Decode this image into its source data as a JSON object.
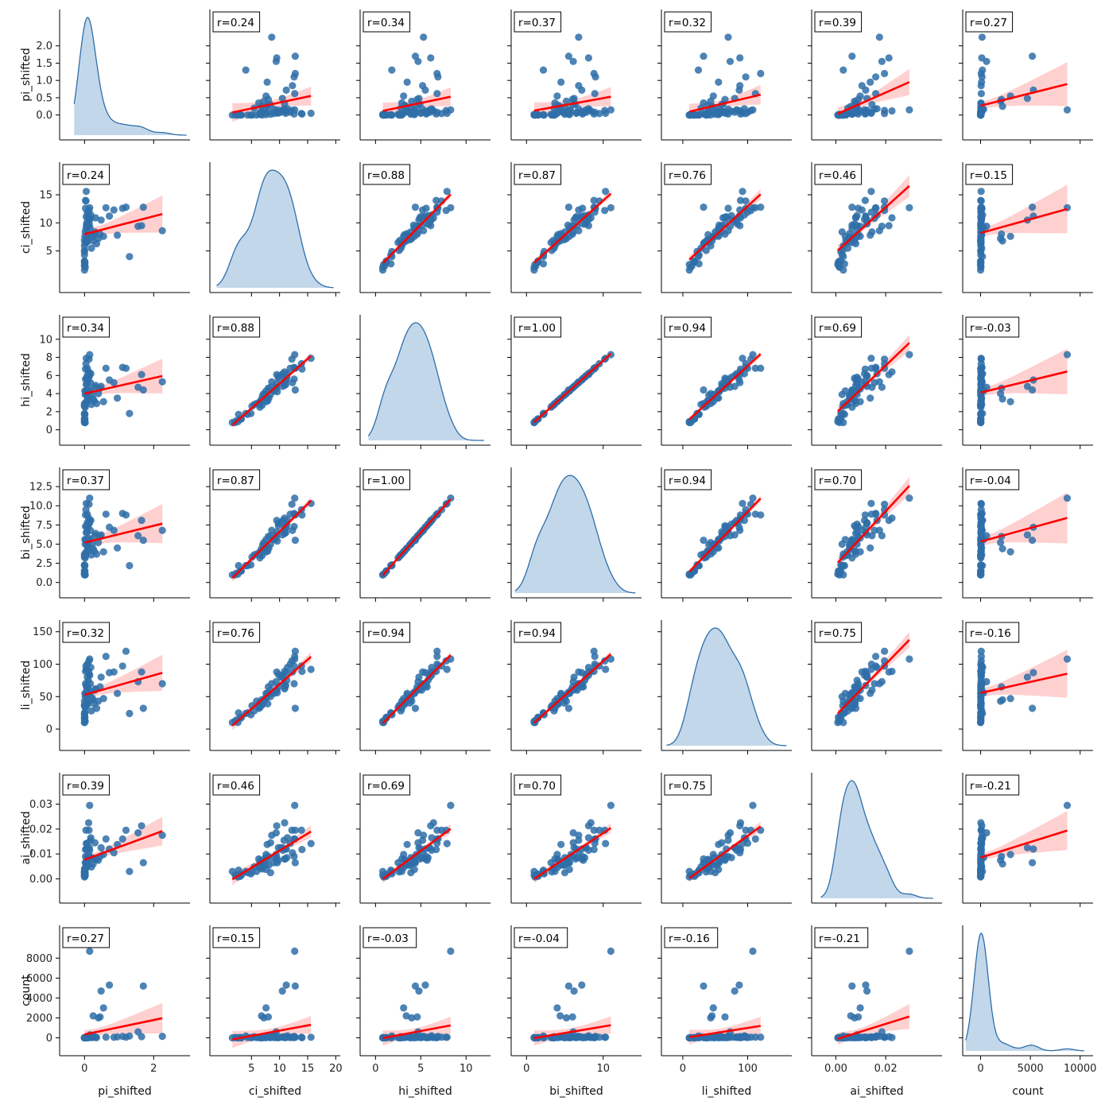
{
  "chart_data": {
    "type": "pairplot",
    "variables": [
      "pi_shifted",
      "ci_shifted",
      "hi_shifted",
      "bi_shifted",
      "li_shifted",
      "ai_shifted",
      "count"
    ],
    "axes": {
      "pi_shifted": {
        "lim": [
          -0.72,
          3.05
        ],
        "x_ticks": [
          0,
          2
        ],
        "y_ticks": [
          0.0,
          0.5,
          1.0,
          1.5,
          2.0
        ],
        "y_tick_labels": [
          "0.0",
          "0.5",
          "1.0",
          "1.5",
          "2.0"
        ]
      },
      "ci_shifted": {
        "lim": [
          -2.4,
          20.8
        ],
        "x_ticks": [
          5,
          10,
          15,
          20
        ],
        "y_ticks": [
          5,
          10,
          15
        ],
        "y_tick_labels": [
          "5",
          "10",
          "15"
        ]
      },
      "hi_shifted": {
        "lim": [
          -1.7,
          12.7
        ],
        "x_ticks": [
          0,
          5,
          10
        ],
        "y_ticks": [
          0,
          2,
          4,
          6,
          8,
          10
        ],
        "y_tick_labels": [
          "0",
          "2",
          "4",
          "6",
          "8",
          "10"
        ]
      },
      "bi_shifted": {
        "lim": [
          -2.0,
          15.0
        ],
        "x_ticks": [
          0,
          10
        ],
        "y_ticks": [
          0,
          2.5,
          5,
          7.5,
          10,
          12.5
        ],
        "y_tick_labels": [
          "0.0",
          "2.5",
          "5.0",
          "7.5",
          "10.0",
          "12.5"
        ]
      },
      "li_shifted": {
        "lim": [
          -33,
          168
        ],
        "x_ticks": [
          0,
          100
        ],
        "y_ticks": [
          0,
          50,
          100,
          150
        ],
        "y_tick_labels": [
          "0",
          "50",
          "100",
          "150"
        ]
      },
      "ai_shifted": {
        "lim": [
          -0.0097,
          0.0426
        ],
        "x_ticks": [
          0.0,
          0.02
        ],
        "y_ticks": [
          0.0,
          0.01,
          0.02,
          0.03
        ],
        "y_tick_labels": [
          "0.00",
          "0.01",
          "0.02",
          "0.03"
        ]
      },
      "count": {
        "lim": [
          -1800,
          11300
        ],
        "x_ticks": [
          0,
          5000,
          10000
        ],
        "y_ticks": [
          0,
          2000,
          4000,
          6000,
          8000
        ],
        "y_tick_labels": [
          "0",
          "2000",
          "4000",
          "6000",
          "8000"
        ]
      }
    },
    "correlations": [
      [
        "",
        "r=0.24",
        "r=0.34",
        "r=0.37",
        "r=0.32",
        "r=0.39",
        "r=0.27"
      ],
      [
        "r=0.24",
        "",
        "r=0.88",
        "r=0.87",
        "r=0.76",
        "r=0.46",
        "r=0.15"
      ],
      [
        "r=0.34",
        "r=0.88",
        "",
        "r=1.00",
        "r=0.94",
        "r=0.69",
        "r=-0.03"
      ],
      [
        "r=0.37",
        "r=0.87",
        "r=1.00",
        "",
        "r=0.94",
        "r=0.70",
        "r=-0.04"
      ],
      [
        "r=0.32",
        "r=0.76",
        "r=0.94",
        "r=0.94",
        "",
        "r=0.75",
        "r=-0.16"
      ],
      [
        "r=0.39",
        "r=0.46",
        "r=0.69",
        "r=0.70",
        "r=0.75",
        "",
        "r=-0.21"
      ],
      [
        "r=0.27",
        "r=0.15",
        "r=-0.03",
        "r=-0.04",
        "r=-0.16",
        "r=-0.21",
        ""
      ]
    ],
    "points": {
      "pi_shifted": [
        2.25,
        1.7,
        1.65,
        1.55,
        1.3,
        1.2,
        1.1,
        0.95,
        0.85,
        0.72,
        0.62,
        0.55,
        0.48,
        0.45,
        0.4,
        0.35,
        0.32,
        0.3,
        0.28,
        0.25,
        0.22,
        0.2,
        0.18,
        0.17,
        0.16,
        0.15,
        0.15,
        0.14,
        0.13,
        0.12,
        0.12,
        0.11,
        0.1,
        0.1,
        0.09,
        0.09,
        0.08,
        0.08,
        0.07,
        0.07,
        0.06,
        0.06,
        0.05,
        0.05,
        0.05,
        0.04,
        0.04,
        0.03,
        0.03,
        0.03,
        0.02,
        0.02,
        0.02,
        0.01,
        0.01,
        0.01,
        0.0,
        0.0,
        0.0,
        0.0,
        0.0,
        0.0,
        0.0,
        0.0,
        0.0,
        0.0
      ],
      "ci_shifted": [
        8.6,
        12.8,
        9.5,
        9.4,
        4.0,
        12.8,
        12.6,
        7.8,
        12.3,
        11.2,
        12.7,
        7.6,
        10.5,
        8.0,
        7.2,
        6.3,
        10.9,
        8.4,
        7.9,
        6.8,
        7.5,
        5.5,
        11.4,
        10.8,
        9.1,
        12.7,
        10.6,
        9.8,
        12.2,
        10.9,
        9.4,
        11.3,
        8.1,
        11.0,
        7.0,
        6.7,
        11.9,
        10.2,
        9.5,
        7.5,
        9.6,
        9.8,
        6.5,
        15.6,
        11.1,
        9.0,
        13.9,
        6.5,
        12.6,
        14.0,
        6.5,
        2.1,
        8.4,
        7.6,
        3.0,
        2.7,
        4.9,
        5.1,
        5.9,
        3.1,
        6.9,
        3.2,
        2.3,
        4.3,
        2.6,
        1.6
      ],
      "hi_shifted": [
        5.3,
        4.4,
        6.1,
        4.7,
        1.8,
        6.8,
        6.9,
        3.5,
        5.2,
        5.5,
        6.8,
        3.1,
        4.8,
        4.6,
        4.0,
        2.9,
        4.9,
        4.7,
        3.2,
        3.4,
        3.9,
        2.8,
        6.2,
        5.2,
        4.3,
        8.3,
        6.2,
        5.9,
        7.8,
        6.4,
        4.5,
        5.8,
        3.5,
        5.5,
        3.8,
        3.2,
        6.8,
        6.0,
        5.1,
        3.8,
        4.2,
        5.7,
        3.1,
        7.9,
        5.0,
        4.3,
        7.3,
        2.8,
        5.6,
        6.7,
        2.5,
        0.8,
        3.9,
        4.3,
        1.2,
        1.7,
        1.8,
        2.6,
        2.9,
        1.2,
        2.7,
        1.2,
        1.0,
        1.7,
        0.9,
        0.8
      ],
      "bi_shifted": [
        6.8,
        5.5,
        8.1,
        6.1,
        2.2,
        8.8,
        9.0,
        4.5,
        6.8,
        7.2,
        8.9,
        4.0,
        6.2,
        6.0,
        5.2,
        3.7,
        6.4,
        6.1,
        4.1,
        4.4,
        5.0,
        3.6,
        8.1,
        6.8,
        5.6,
        11.0,
        8.1,
        7.7,
        10.2,
        8.4,
        5.8,
        7.6,
        4.5,
        7.2,
        4.9,
        4.1,
        8.9,
        7.8,
        6.6,
        4.9,
        5.4,
        7.4,
        4.0,
        10.3,
        6.5,
        5.6,
        9.5,
        3.6,
        7.3,
        8.8,
        3.2,
        1.0,
        5.0,
        5.6,
        1.5,
        2.2,
        2.3,
        3.3,
        3.7,
        1.5,
        3.5,
        1.5,
        1.2,
        2.2,
        1.1,
        1.0
      ],
      "li_shifted": [
        70,
        32,
        88,
        73,
        24,
        120,
        97,
        55,
        88,
        87,
        112,
        47,
        80,
        65,
        43,
        32,
        62,
        60,
        39,
        45,
        48,
        28,
        95,
        70,
        56,
        108,
        83,
        84,
        105,
        89,
        60,
        75,
        53,
        65,
        40,
        38,
        100,
        80,
        60,
        47,
        56,
        65,
        40,
        92,
        67,
        55,
        97,
        34,
        70,
        89,
        33,
        12,
        50,
        55,
        18,
        25,
        22,
        36,
        43,
        17,
        37,
        18,
        14,
        25,
        10,
        10
      ],
      "ai_shifted": [
        0.0175,
        0.0065,
        0.0213,
        0.0185,
        0.003,
        0.0195,
        0.016,
        0.0138,
        0.0105,
        0.012,
        0.016,
        0.0098,
        0.0125,
        0.009,
        0.0075,
        0.008,
        0.008,
        0.0145,
        0.0078,
        0.006,
        0.0085,
        0.0048,
        0.0165,
        0.0155,
        0.0085,
        0.0295,
        0.0115,
        0.0125,
        0.0195,
        0.0225,
        0.0098,
        0.0085,
        0.0055,
        0.008,
        0.0055,
        0.0075,
        0.0143,
        0.0125,
        0.0085,
        0.0055,
        0.0065,
        0.0075,
        0.0045,
        0.0142,
        0.012,
        0.0065,
        0.0195,
        0.0045,
        0.009,
        0.0118,
        0.0065,
        0.0015,
        0.0025,
        0.0038,
        0.001,
        0.0035,
        0.002,
        0.0028,
        0.003,
        0.002,
        0.004,
        0.0015,
        0.0012,
        0.0025,
        0.0008,
        0.003
      ],
      "count": [
        150,
        5200,
        120,
        600,
        180,
        60,
        140,
        90,
        50,
        5300,
        70,
        3000,
        4700,
        2100,
        2000,
        30,
        40,
        90,
        60,
        2200,
        20,
        110,
        200,
        100,
        300,
        8700,
        80,
        40,
        60,
        30,
        20,
        50,
        60,
        70,
        40,
        30,
        20,
        50,
        60,
        30,
        20,
        10,
        40,
        50,
        30,
        20,
        60,
        30,
        20,
        10,
        20,
        30,
        10,
        20,
        30,
        10,
        20,
        10,
        20,
        10,
        0,
        0,
        10,
        20,
        0,
        0
      ]
    },
    "kde_support": {
      "pi_shifted": [
        -0.3,
        2.95
      ],
      "ci_shifted": [
        -1.2,
        19.6
      ],
      "hi_shifted": [
        -0.8,
        12.0
      ],
      "bi_shifted": [
        -1.5,
        14.2
      ],
      "li_shifted": [
        -25,
        160
      ],
      "ai_shifted": [
        -0.006,
        0.039
      ],
      "count": [
        -1500,
        10400
      ]
    },
    "colors": {
      "points": "#2f6ea8",
      "regression": "#ff0000",
      "ci_band": "#ffc8c8",
      "kde_fill": "#c3d7ea",
      "kde_line": "#2f6ea8"
    }
  }
}
